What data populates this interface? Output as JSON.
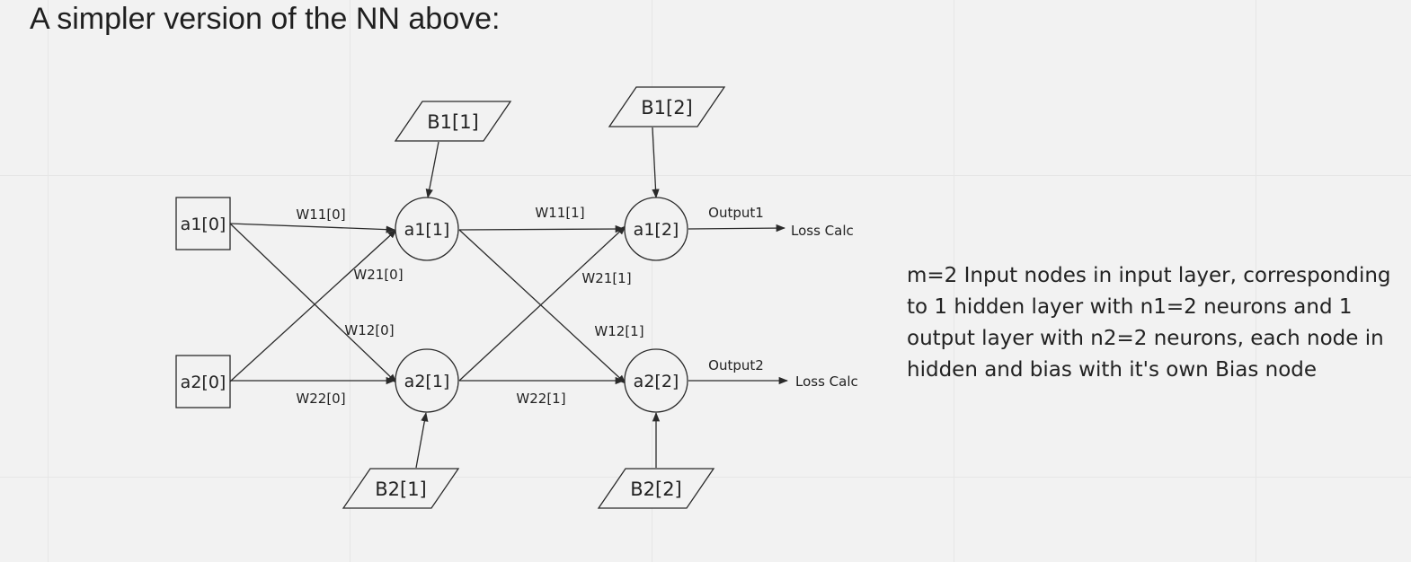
{
  "heading": "A simpler version of the NN above:",
  "description": "m=2 Input nodes in input layer, corresponding to 1 hidden layer with n1=2 neurons and 1 output layer with n2=2 neurons, each node in hidden and bias with it's own Bias node",
  "nodes": {
    "input": [
      "a1[0]",
      "a2[0]"
    ],
    "hidden": [
      "a1[1]",
      "a2[1]"
    ],
    "output": [
      "a1[2]",
      "a2[2]"
    ]
  },
  "bias": {
    "b1_1": "B1[1]",
    "b2_1": "B2[1]",
    "b1_2": "B1[2]",
    "b2_2": "B2[2]"
  },
  "weights": {
    "layer0": {
      "w11": "W11[0]",
      "w21": "W21[0]",
      "w12": "W12[0]",
      "w22": "W22[0]"
    },
    "layer1": {
      "w11": "W11[1]",
      "w21": "W21[1]",
      "w12": "W12[1]",
      "w22": "W22[1]"
    }
  },
  "outputs": {
    "output1": "Output1",
    "output2": "Output2",
    "loss1": "Loss Calc",
    "loss2": "Loss Calc"
  }
}
